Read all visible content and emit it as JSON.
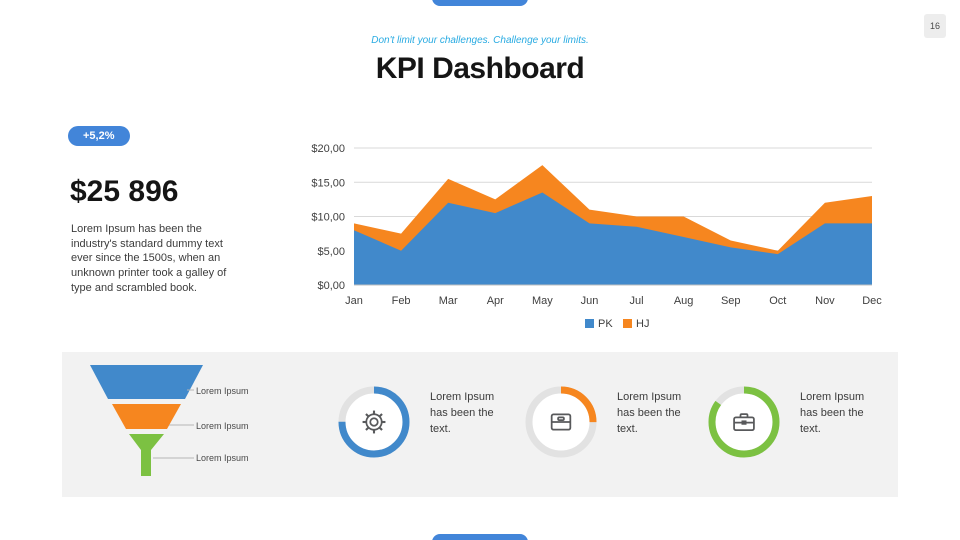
{
  "page": {
    "slide_number": "16",
    "subtitle": "Don't limit your challenges. Challenge your limits.",
    "title": "KPI Dashboard"
  },
  "colors": {
    "accent_blue": "#4285d9",
    "chart_blue": "#4189cb",
    "orange": "#f6861f",
    "green": "#7cc142",
    "panel_gray": "#f2f2f2",
    "grid_gray": "#d9d9d9"
  },
  "stats": {
    "badge": "+5,2%",
    "value": "$25 896",
    "description": "Lorem Ipsum has been the industry's standard dummy text ever since the 1500s, when an unknown printer took a galley of type and scrambled book."
  },
  "chart_data": {
    "type": "area",
    "stacked": true,
    "categories": [
      "Jan",
      "Feb",
      "Mar",
      "Apr",
      "May",
      "Jun",
      "Jul",
      "Aug",
      "Sep",
      "Oct",
      "Nov",
      "Dec"
    ],
    "series": [
      {
        "name": "PK",
        "color": "#4189cb",
        "values": [
          8,
          5,
          12,
          10.5,
          13.5,
          9,
          8.5,
          7,
          5.5,
          4.5,
          9,
          9
        ]
      },
      {
        "name": "HJ",
        "color": "#f6861f",
        "values": [
          1,
          2.5,
          3.5,
          2,
          4,
          2,
          1.5,
          3,
          1,
          0.5,
          3,
          4
        ]
      }
    ],
    "ylim": [
      0,
      20
    ],
    "yticks": [
      0,
      5,
      10,
      15,
      20
    ],
    "ytick_labels": [
      "$0,00",
      "$5,00",
      "$10,00",
      "$15,00",
      "$20,00"
    ],
    "grid": true,
    "legend_position": "bottom"
  },
  "funnel": {
    "segments": [
      {
        "label": "Lorem Ipsum",
        "color": "#4189cb"
      },
      {
        "label": "Lorem Ipsum",
        "color": "#f6861f"
      },
      {
        "label": "Lorem Ipsum",
        "color": "#7cc142"
      }
    ]
  },
  "kpi_cards": [
    {
      "icon": "gear-icon",
      "color": "#4189cb",
      "percent": 0.75,
      "text": "Lorem Ipsum has been the text."
    },
    {
      "icon": "card-file-icon",
      "color": "#f6861f",
      "percent": 0.25,
      "text": "Lorem Ipsum has been the text."
    },
    {
      "icon": "briefcase-icon",
      "color": "#7cc142",
      "percent": 0.85,
      "text": "Lorem Ipsum has been the text."
    }
  ]
}
